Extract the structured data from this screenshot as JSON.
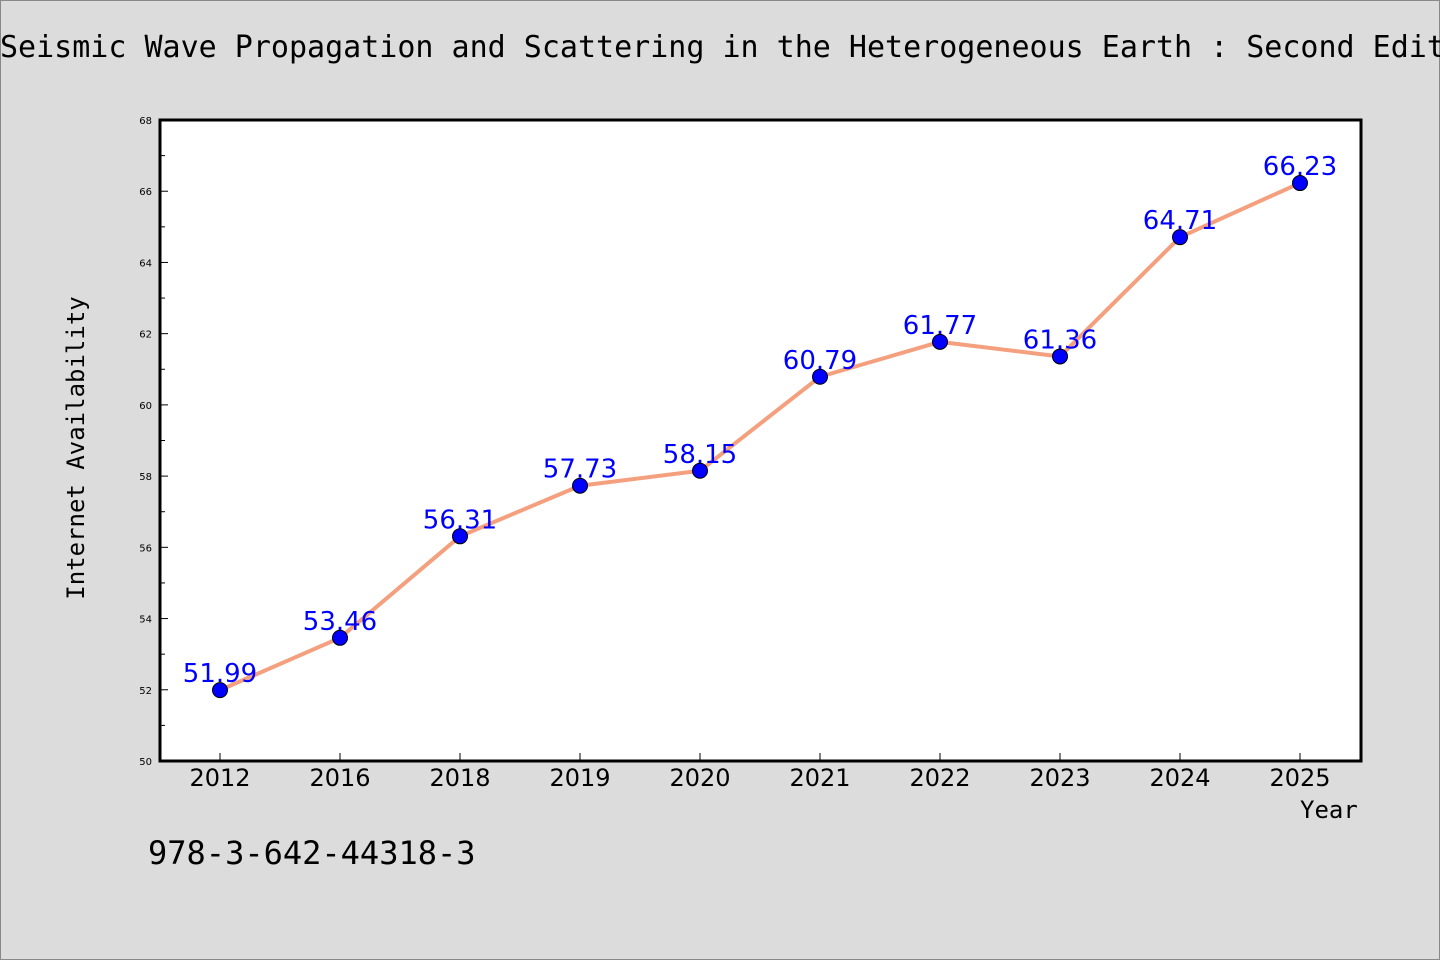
{
  "page": {
    "title": "Seismic Wave Propagation and Scattering in the Heterogeneous Earth : Second Edition",
    "footnote": "978-3-642-44318-3"
  },
  "chart_data": {
    "type": "line",
    "title": "Seismic Wave Propagation and Scattering in the Heterogeneous Earth : Second Edition",
    "xlabel": "Year",
    "ylabel": "Internet Availability",
    "categories": [
      "2012",
      "2016",
      "2018",
      "2019",
      "2020",
      "2021",
      "2022",
      "2023",
      "2024",
      "2025"
    ],
    "series": [
      {
        "values": [
          51.99,
          53.46,
          56.31,
          57.73,
          58.15,
          60.79,
          61.77,
          61.36,
          64.71,
          66.23
        ],
        "labels": [
          "51.99",
          "53.46",
          "56.31",
          "57.73",
          "58.15",
          "60.79",
          "61.77",
          "61.36",
          "64.71",
          "66.23"
        ]
      }
    ],
    "ylim": [
      50,
      68
    ],
    "yticks": [
      "50",
      "52",
      "54",
      "56",
      "58",
      "60",
      "62",
      "64",
      "66",
      "68"
    ],
    "grid": false,
    "legend": "none",
    "colors": {
      "line": "#f4a07e",
      "marker": "#0000ff",
      "data_label": "#0000ff",
      "plot_background": "#ffffff",
      "page_background": "#dcdcdc"
    }
  }
}
